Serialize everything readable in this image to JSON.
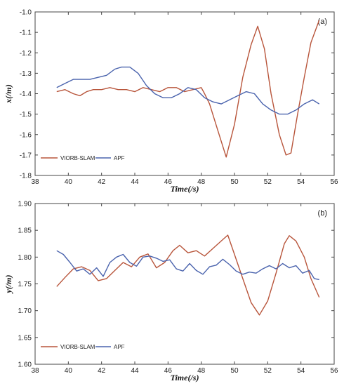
{
  "colors": {
    "viorb": "#b8553b",
    "apf": "#4a63ad",
    "axis": "#444444"
  },
  "chart_data": [
    {
      "type": "line",
      "panel_label": "(a)",
      "xlabel": "Time(/s)",
      "ylabel": "x(/m)",
      "xlim": [
        38,
        56
      ],
      "ylim": [
        -1.8,
        -1.0
      ],
      "xticks": [
        "38",
        "40",
        "42",
        "44",
        "46",
        "48",
        "50",
        "52",
        "54",
        "56"
      ],
      "yticks": [
        "-1.0",
        "-1.1",
        "-1.2",
        "-1.3",
        "-1.4",
        "-1.5",
        "-1.6",
        "-1.7",
        "-1.8"
      ],
      "legend": "bottom-left",
      "series": [
        {
          "name": "VIORB-SLAM",
          "color": "#b8553b",
          "x": [
            39.3,
            39.8,
            40.3,
            40.7,
            41.1,
            41.5,
            42.0,
            42.5,
            43.0,
            43.5,
            44.0,
            44.5,
            45.0,
            45.5,
            46.0,
            46.5,
            47.0,
            47.5,
            48.0,
            48.2,
            48.5,
            49.0,
            49.5,
            50.0,
            50.5,
            51.0,
            51.4,
            51.8,
            52.2,
            52.7,
            53.1,
            53.4,
            53.8,
            54.2,
            54.6,
            55.1
          ],
          "y": [
            -1.39,
            -1.38,
            -1.4,
            -1.41,
            -1.39,
            -1.38,
            -1.38,
            -1.37,
            -1.38,
            -1.38,
            -1.39,
            -1.37,
            -1.38,
            -1.39,
            -1.37,
            -1.37,
            -1.39,
            -1.38,
            -1.37,
            -1.4,
            -1.45,
            -1.58,
            -1.71,
            -1.55,
            -1.32,
            -1.16,
            -1.07,
            -1.18,
            -1.4,
            -1.6,
            -1.7,
            -1.69,
            -1.5,
            -1.32,
            -1.15,
            -1.04
          ]
        },
        {
          "name": "APF",
          "color": "#4a63ad",
          "x": [
            39.3,
            39.8,
            40.3,
            40.8,
            41.3,
            41.8,
            42.3,
            42.8,
            43.2,
            43.7,
            44.2,
            44.7,
            45.2,
            45.7,
            46.2,
            46.7,
            47.2,
            47.7,
            48.2,
            48.7,
            49.2,
            49.7,
            50.2,
            50.7,
            51.2,
            51.7,
            52.2,
            52.7,
            53.2,
            53.7,
            54.2,
            54.7,
            55.1
          ],
          "y": [
            -1.37,
            -1.35,
            -1.33,
            -1.33,
            -1.33,
            -1.32,
            -1.31,
            -1.28,
            -1.27,
            -1.27,
            -1.3,
            -1.36,
            -1.4,
            -1.42,
            -1.42,
            -1.4,
            -1.37,
            -1.38,
            -1.42,
            -1.44,
            -1.45,
            -1.43,
            -1.41,
            -1.39,
            -1.4,
            -1.45,
            -1.48,
            -1.5,
            -1.5,
            -1.48,
            -1.45,
            -1.43,
            -1.45
          ]
        }
      ]
    },
    {
      "type": "line",
      "panel_label": "(b)",
      "xlabel": "Time(/s)",
      "ylabel": "y(/m)",
      "xlim": [
        38,
        56
      ],
      "ylim": [
        1.6,
        1.9
      ],
      "xticks": [
        "38",
        "40",
        "42",
        "44",
        "46",
        "48",
        "50",
        "52",
        "54",
        "56"
      ],
      "yticks": [
        "1.90",
        "1.85",
        "1.80",
        "1.75",
        "1.70",
        "1.65",
        "1.60"
      ],
      "legend": "bottom-left",
      "series": [
        {
          "name": "VIORB-SLAM",
          "color": "#b8553b",
          "x": [
            39.3,
            39.8,
            40.3,
            40.8,
            41.3,
            41.8,
            42.3,
            42.8,
            43.3,
            43.8,
            44.3,
            44.8,
            45.3,
            45.8,
            46.3,
            46.7,
            47.2,
            47.7,
            48.2,
            48.7,
            49.2,
            49.6,
            50.0,
            50.5,
            51.0,
            51.5,
            52.0,
            52.5,
            53.0,
            53.3,
            53.7,
            54.2,
            54.6,
            55.1
          ],
          "y": [
            1.745,
            1.762,
            1.778,
            1.782,
            1.775,
            1.756,
            1.76,
            1.775,
            1.79,
            1.782,
            1.8,
            1.806,
            1.78,
            1.79,
            1.812,
            1.822,
            1.808,
            1.812,
            1.802,
            1.816,
            1.83,
            1.841,
            1.805,
            1.76,
            1.715,
            1.692,
            1.718,
            1.77,
            1.825,
            1.84,
            1.83,
            1.8,
            1.76,
            1.725
          ]
        },
        {
          "name": "APF",
          "color": "#4a63ad",
          "x": [
            39.3,
            39.7,
            40.1,
            40.5,
            40.9,
            41.3,
            41.7,
            42.1,
            42.5,
            42.9,
            43.3,
            43.7,
            44.1,
            44.5,
            44.9,
            45.3,
            45.7,
            46.1,
            46.5,
            46.9,
            47.3,
            47.7,
            48.1,
            48.5,
            48.9,
            49.3,
            49.7,
            50.1,
            50.5,
            50.9,
            51.3,
            51.7,
            52.1,
            52.5,
            52.9,
            53.3,
            53.7,
            54.1,
            54.5,
            54.8,
            55.1
          ],
          "y": [
            1.812,
            1.805,
            1.79,
            1.774,
            1.778,
            1.768,
            1.78,
            1.764,
            1.79,
            1.8,
            1.805,
            1.79,
            1.783,
            1.8,
            1.802,
            1.798,
            1.792,
            1.795,
            1.778,
            1.774,
            1.788,
            1.775,
            1.768,
            1.782,
            1.785,
            1.796,
            1.786,
            1.774,
            1.768,
            1.772,
            1.77,
            1.778,
            1.784,
            1.778,
            1.788,
            1.78,
            1.784,
            1.77,
            1.775,
            1.76,
            1.758
          ]
        }
      ]
    }
  ]
}
